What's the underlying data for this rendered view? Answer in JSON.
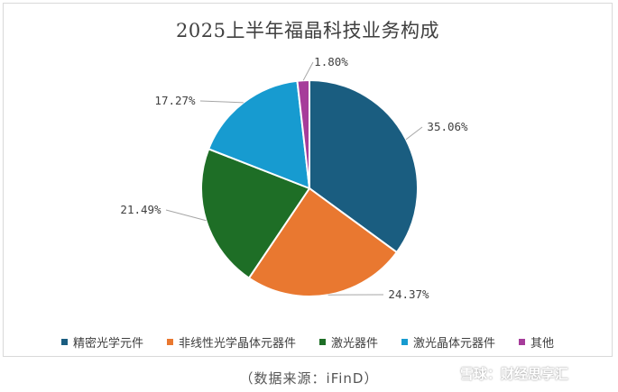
{
  "chart_data": {
    "type": "pie",
    "title": "2025上半年福晶科技业务构成",
    "categories": [
      "精密光学元件",
      "非线性光学晶体元器件",
      "激光器件",
      "激光晶体元器件",
      "其他"
    ],
    "values": [
      35.06,
      24.37,
      21.49,
      17.27,
      1.8
    ],
    "data_labels": [
      "35.06%",
      "24.37%",
      "21.49%",
      "17.27%",
      "1.80%"
    ],
    "colors": [
      "#1a5d80",
      "#e97830",
      "#1e6e26",
      "#179bd0",
      "#a63c9a"
    ],
    "legend_position": "bottom",
    "start_angle": "12 o'clock",
    "direction": "clockwise"
  },
  "source_note": "（数据来源：iFinD）",
  "watermark": {
    "text": "雪球：财经思享汇",
    "icon": "snowball-logo-icon"
  }
}
